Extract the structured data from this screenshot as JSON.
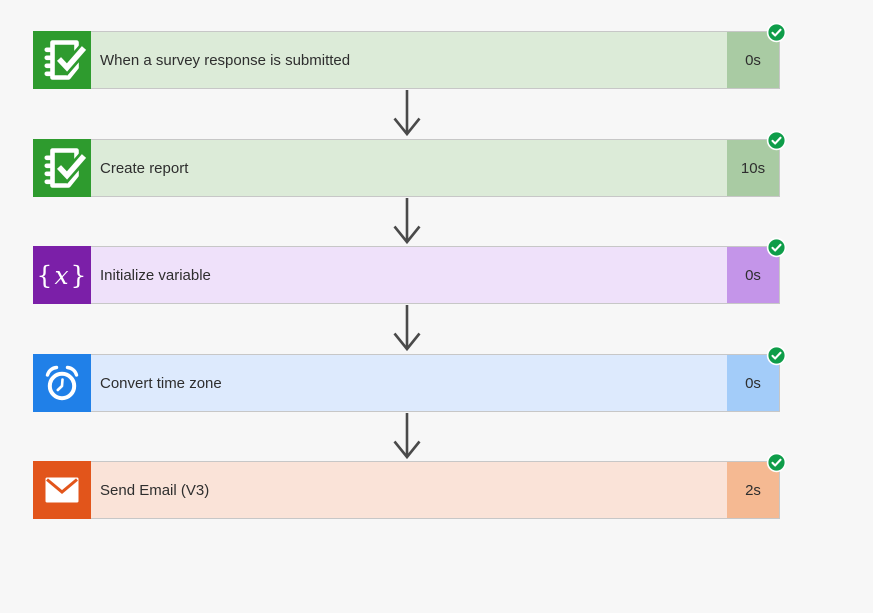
{
  "flow": {
    "background": "#F7F7F7",
    "arrow_color": "#4A4A4A",
    "status_check_color": "#0E9D49",
    "steps": [
      {
        "label": "When a survey response is submitted",
        "duration": "0s",
        "icon": "forms-icon",
        "status": "succeeded",
        "icon_bg": "#2E9B2E",
        "bar_bg": "#DCEBD8",
        "badge_bg": "#A9CBA3"
      },
      {
        "label": "Create report",
        "duration": "10s",
        "icon": "forms-icon",
        "status": "succeeded",
        "icon_bg": "#2E9B2E",
        "bar_bg": "#DCEBD8",
        "badge_bg": "#A9CBA3"
      },
      {
        "label": "Initialize variable",
        "duration": "0s",
        "icon": "variable-icon",
        "status": "succeeded",
        "icon_bg": "#7B1FA8",
        "bar_bg": "#EFE1FA",
        "badge_bg": "#C495E9"
      },
      {
        "label": "Convert time zone",
        "duration": "0s",
        "icon": "alarm-clock-icon",
        "status": "succeeded",
        "icon_bg": "#2080E8",
        "bar_bg": "#DDEAFD",
        "badge_bg": "#A3CCF9"
      },
      {
        "label": "Send Email (V3)",
        "duration": "2s",
        "icon": "mail-icon",
        "status": "succeeded",
        "icon_bg": "#E2551B",
        "bar_bg": "#FAE3D8",
        "badge_bg": "#F5B992"
      }
    ]
  }
}
